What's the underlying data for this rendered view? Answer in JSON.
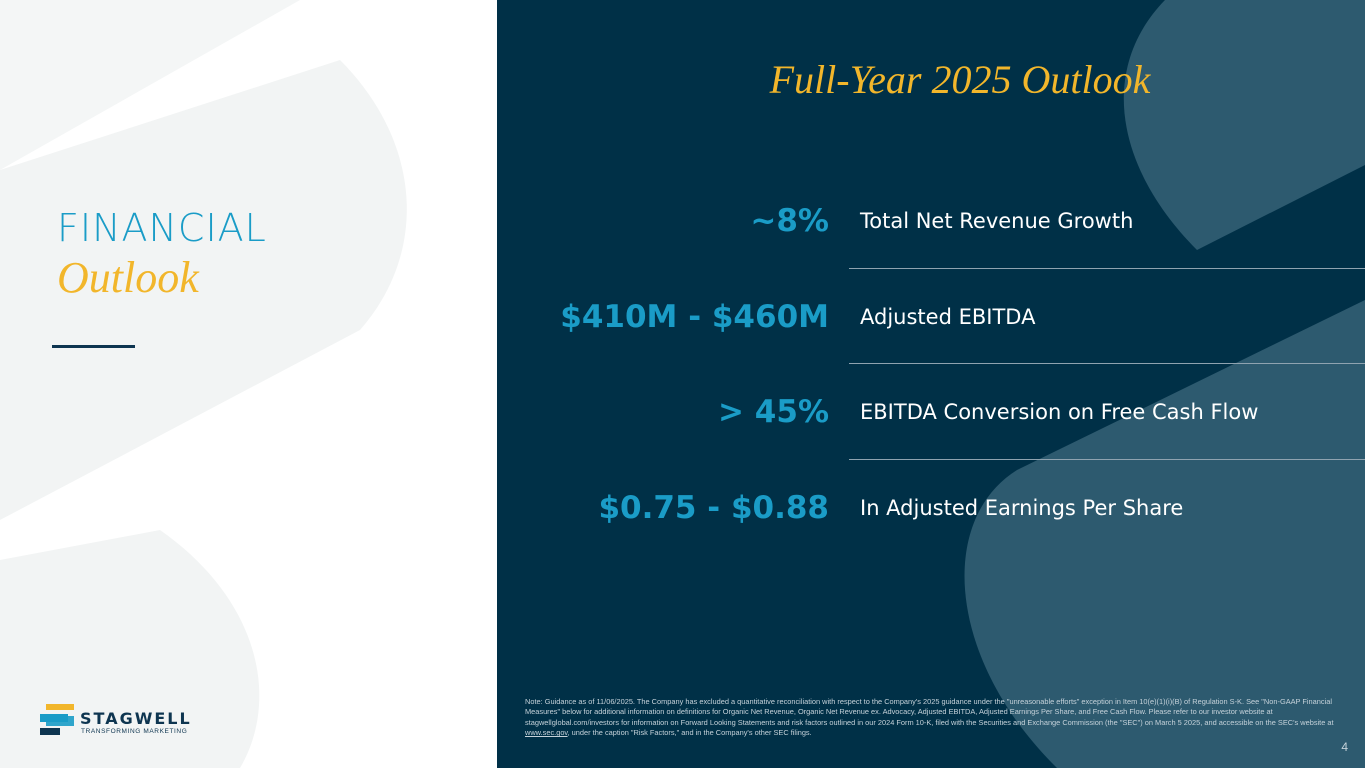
{
  "left": {
    "heading_line1": "FINANCIAL",
    "heading_line2": "Outlook",
    "logo": {
      "wordmark": "STAGWELL",
      "tagline": "TRANSFORMING MARKETING",
      "colors": {
        "navy": "#0e3550",
        "blue": "#1a9cc7",
        "gold": "#f2b62b"
      }
    }
  },
  "right": {
    "title": "Full-Year 2025 Outlook",
    "metrics": [
      {
        "value": "~8%",
        "label": "Total Net Revenue Growth"
      },
      {
        "value": "$410M - $460M",
        "label": "Adjusted EBITDA"
      },
      {
        "value": "> 45%",
        "label": "EBITDA Conversion on Free Cash Flow"
      },
      {
        "value": "$0.75 - $0.88",
        "label": "In Adjusted Earnings Per Share"
      }
    ],
    "note": {
      "text_before_link": "Note: Guidance as of 11/06/2025. The Company has excluded a quantitative reconciliation with respect to the Company's 2025 guidance under the \"unreasonable efforts\" exception in Item 10(e)(1)(i)(B) of Regulation S-K. See \"Non-GAAP Financial Measures\" below for additional information on definitions for Organic Net Revenue, Organic Net Revenue ex. Advocacy, Adjusted EBITDA, Adjusted Earnings Per Share, and Free Cash Flow. Please refer to our investor website at stagwellglobal.com/investors for information on Forward Looking Statements and risk factors outlined in our 2024 Form 10-K, filed with the Securities and Exchange Commission (the \"SEC\") on March 5 2025, and accessible on the SEC's website at ",
      "link": "www.sec.gov",
      "text_after_link": ", under the caption \"Risk Factors,\" and in the Company's other SEC filings."
    },
    "page_number": "4"
  },
  "colors": {
    "background_dark": "#003047",
    "accent_blue": "#1a9cc7",
    "accent_gold": "#f2b62b",
    "text_white": "#ffffff"
  }
}
